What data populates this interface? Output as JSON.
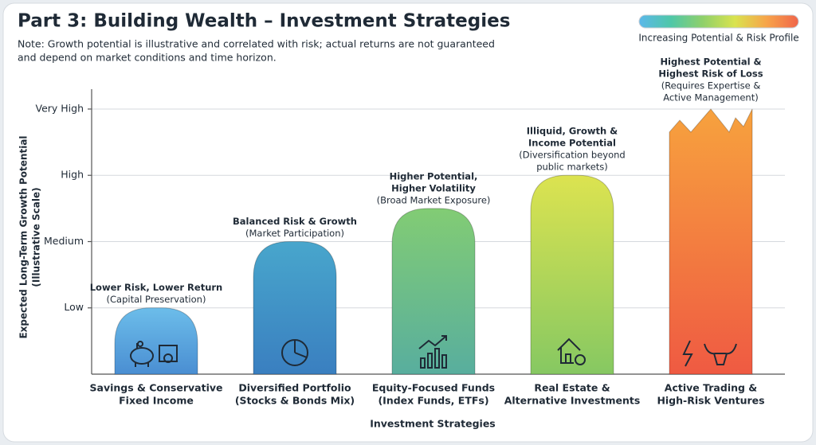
{
  "chart_data": {
    "type": "bar",
    "title": "Part 3: Building Wealth – Investment Strategies",
    "subtitle": [
      "Note: Growth potential is illustrative and correlated with risk; actual returns are not guaranteed",
      "and depend on market conditions and time horizon."
    ],
    "x_label": "Investment Strategies",
    "y_label": [
      "Expected Long-Term Growth Potential",
      "(Illustrative Scale)"
    ],
    "categories": [
      [
        "Savings & Conservative",
        "Fixed Income"
      ],
      [
        "Diversified Portfolio",
        "(Stocks & Bonds Mix)"
      ],
      [
        "Equity-Focused Funds",
        "(Index Funds, ETFs)"
      ],
      [
        "Real Estate &",
        "Alternative Investments"
      ],
      [
        "Active Trading &",
        "High-Risk Ventures"
      ]
    ],
    "values": [
      1,
      2,
      2.5,
      3,
      4
    ],
    "colors": [
      [
        "#6cbdea",
        "#4a8ed2"
      ],
      [
        "#48a6cc",
        "#3a7fc0"
      ],
      [
        "#82cc74",
        "#58ae9e"
      ],
      [
        "#dce350",
        "#86c862"
      ],
      [
        "#f7a23e",
        "#ef5a42"
      ]
    ],
    "annotations": [
      {
        "headline": [
          "Lower Risk, Lower Return"
        ],
        "detail": [
          "(Capital Preservation)"
        ]
      },
      {
        "headline": [
          "Balanced Risk & Growth"
        ],
        "detail": [
          "(Market Participation)"
        ]
      },
      {
        "headline": [
          "Higher Potential,",
          "Higher Volatility"
        ],
        "detail": [
          "(Broad Market Exposure)"
        ]
      },
      {
        "headline": [
          "Illiquid, Growth &",
          "Income Potential"
        ],
        "detail": [
          "(Diversification beyond",
          "public markets)"
        ]
      },
      {
        "headline": [
          "Highest Potential &",
          "Highest Risk of Loss"
        ],
        "detail": [
          "(Requires Expertise &",
          "Active Management)"
        ]
      }
    ],
    "ylim": [
      0,
      4.3
    ],
    "yticks": [
      {
        "value": 1,
        "label": "Low"
      },
      {
        "value": 2,
        "label": "Medium"
      },
      {
        "value": 3,
        "label": "High"
      },
      {
        "value": 4,
        "label": "Very High"
      }
    ],
    "grid": true,
    "legend": {
      "label": "Increasing Potential & Risk Profile",
      "colors": [
        "#5bb8ea",
        "#4fc7a8",
        "#8fd06a",
        "#d9e34f",
        "#f7a44a",
        "#f0654a"
      ]
    }
  }
}
